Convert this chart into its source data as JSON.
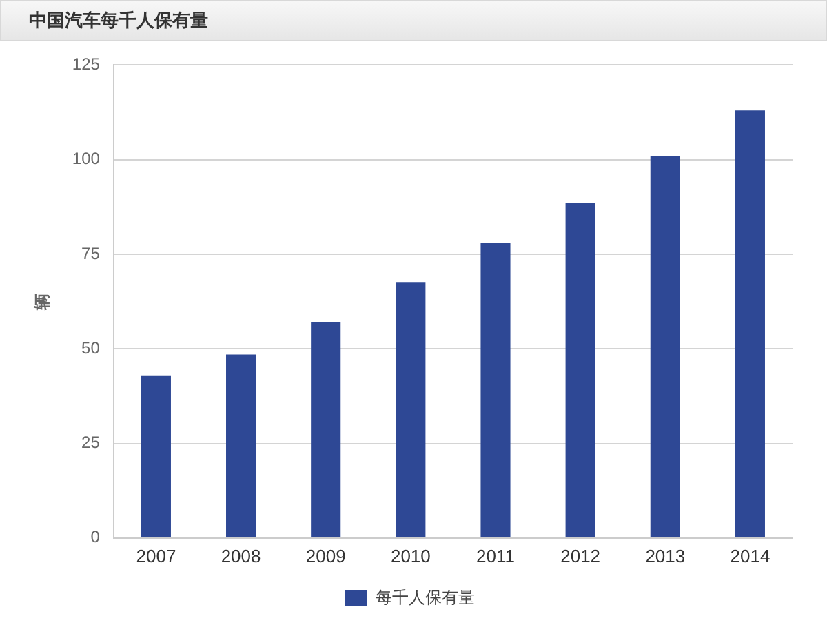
{
  "chart_data": {
    "type": "bar",
    "title": "中国汽车每千人保有量",
    "ylabel": "辆",
    "categories": [
      "2007",
      "2008",
      "2009",
      "2010",
      "2011",
      "2012",
      "2013",
      "2014"
    ],
    "series": [
      {
        "name": "每千人保有量",
        "color": "#2e4895",
        "values": [
          43,
          48.5,
          57,
          67.5,
          78,
          88.5,
          101,
          113
        ]
      }
    ],
    "ylim": [
      0,
      125
    ],
    "yticks": [
      0,
      25,
      50,
      75,
      100,
      125
    ],
    "grid": "y",
    "legend": "bottom"
  }
}
